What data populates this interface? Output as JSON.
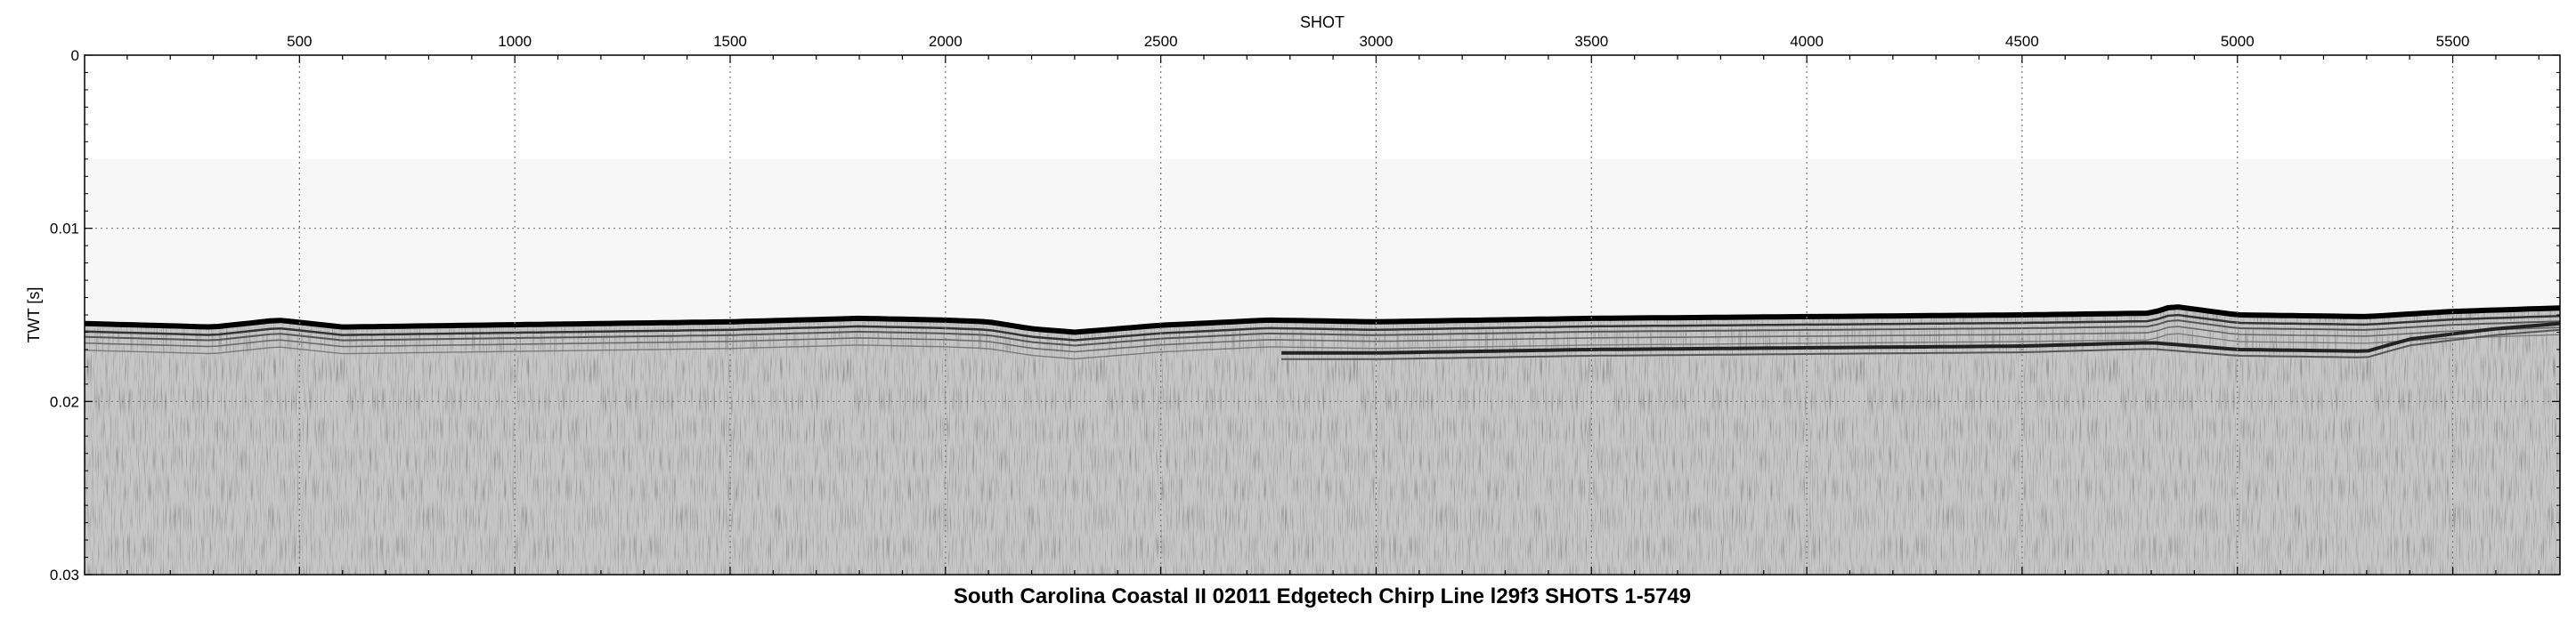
{
  "chart_data": {
    "type": "seismic-profile",
    "title": "South Carolina Coastal II 02011 Edgetech Chirp Line l29f3 SHOTS 1-5749",
    "xlabel": "SHOT",
    "ylabel": "TWT [s]",
    "xlim": [
      1,
      5749
    ],
    "ylim": [
      0,
      0.03
    ],
    "y_inverted": true,
    "x_ticks": [
      500,
      1000,
      1500,
      2000,
      2500,
      3000,
      3500,
      4000,
      4500,
      5000,
      5500
    ],
    "x_tick_labels": [
      "500",
      "1000",
      "1500",
      "2000",
      "2500",
      "3000",
      "3500",
      "4000",
      "4500",
      "5000",
      "5500"
    ],
    "y_ticks": [
      0,
      0.01,
      0.02,
      0.03
    ],
    "y_tick_labels": [
      "0",
      "0.01",
      "0.02",
      "0.03"
    ],
    "grid": true,
    "colormap": "grayscale",
    "seafloor_reflector": {
      "shot": [
        1,
        300,
        450,
        600,
        900,
        1200,
        1500,
        1800,
        2000,
        2100,
        2200,
        2300,
        2500,
        2750,
        3000,
        3500,
        4000,
        4500,
        4800,
        4850,
        5000,
        5300,
        5500,
        5749
      ],
      "twt": [
        0.0155,
        0.0157,
        0.0153,
        0.0157,
        0.0156,
        0.0155,
        0.0154,
        0.0152,
        0.0153,
        0.0154,
        0.0158,
        0.016,
        0.0156,
        0.0153,
        0.0154,
        0.0152,
        0.0151,
        0.015,
        0.0149,
        0.0145,
        0.015,
        0.0151,
        0.0148,
        0.0146
      ]
    },
    "subbottom_reflector": {
      "shot": [
        2780,
        3000,
        3500,
        4000,
        4500,
        4800,
        4900,
        5000,
        5300,
        5400,
        5600,
        5749
      ],
      "twt": [
        0.0172,
        0.0172,
        0.017,
        0.0169,
        0.0168,
        0.0166,
        0.0168,
        0.017,
        0.0171,
        0.0164,
        0.0158,
        0.0155
      ]
    }
  }
}
